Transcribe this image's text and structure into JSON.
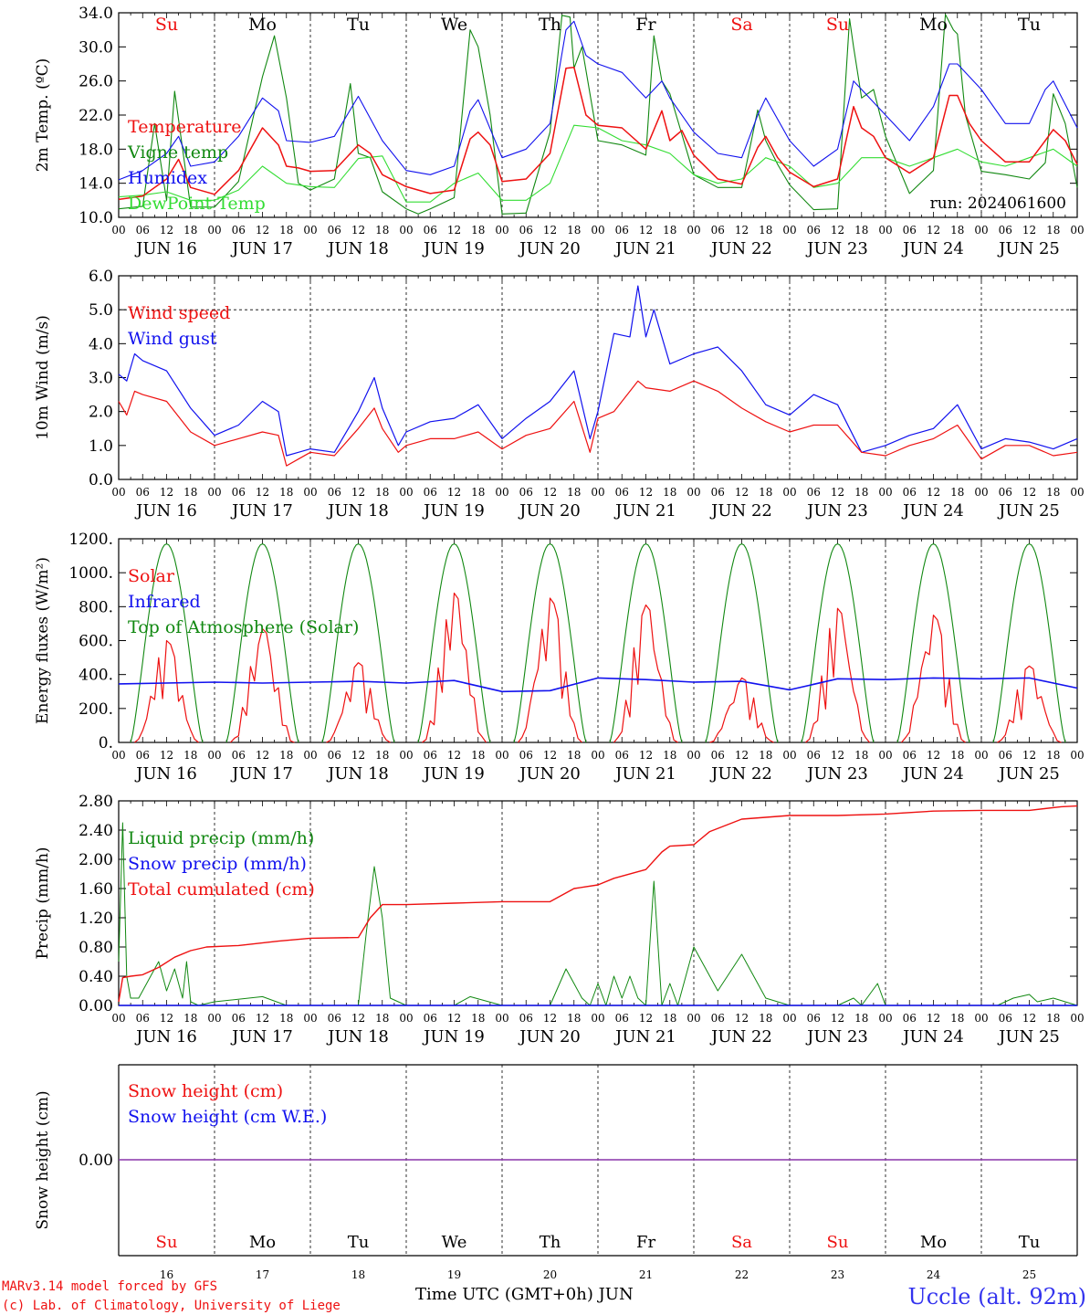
{
  "footer": {
    "model_line": "MARv3.14 model forced by GFS",
    "lab_line": "(c) Lab. of Climatology, University of Liege",
    "xlabel": "Time UTC (GMT+0h) JUN",
    "station": "Uccle (alt. 92m)"
  },
  "colors": {
    "red": "#ee1111",
    "green": "#118811",
    "blue": "#1111ee",
    "lightgreen": "#33dd33",
    "weekend": "#ee1111",
    "weekday": "#000000",
    "snow_line": "#8833aa"
  },
  "days": {
    "abbr": [
      "Su",
      "Mo",
      "Tu",
      "We",
      "Th",
      "Fr",
      "Sa",
      "Su",
      "Mo",
      "Tu"
    ],
    "weekend": [
      true,
      false,
      false,
      false,
      false,
      false,
      true,
      true,
      false,
      false
    ],
    "dates": [
      "JUN 16",
      "JUN 17",
      "JUN 18",
      "JUN 19",
      "JUN 20",
      "JUN 21",
      "JUN 22",
      "JUN 23",
      "JUN 24",
      "JUN 25"
    ],
    "numbers": [
      "16",
      "17",
      "18",
      "19",
      "20",
      "21",
      "22",
      "23",
      "24",
      "25"
    ],
    "hour_ticks": [
      "00",
      "06",
      "12",
      "18"
    ],
    "hour_end": "00"
  },
  "chart_data": [
    {
      "type": "line",
      "ylabel": "2m Temp. (ºC)",
      "yticks": [
        "10.0",
        "14.0",
        "18.0",
        "22.0",
        "26.0",
        "30.0",
        "34.0"
      ],
      "ylim": [
        10,
        34
      ],
      "run_label": "run: 2024061600",
      "x_unit": "hours since 2024-06-16 00 UTC",
      "series": [
        {
          "name": "Temperature",
          "color": "red",
          "x": [
            0,
            6,
            12,
            15,
            18,
            24,
            30,
            36,
            40,
            42,
            45,
            48,
            54,
            60,
            63,
            66,
            72,
            78,
            84,
            88,
            90,
            93,
            96,
            102,
            108,
            112,
            114,
            117,
            120,
            126,
            132,
            136,
            138,
            141,
            144,
            150,
            156,
            160,
            162,
            165,
            168,
            174,
            180,
            184,
            186,
            189,
            192,
            198,
            204,
            208,
            210,
            213,
            216,
            222,
            228,
            232,
            234,
            237,
            240
          ],
          "values": [
            12.1,
            12.5,
            14.5,
            16.8,
            13.5,
            12.7,
            15.5,
            20.5,
            18.5,
            16.0,
            15.8,
            15.4,
            15.5,
            18.5,
            17.5,
            15.0,
            13.6,
            12.8,
            13.2,
            19.2,
            20.0,
            18.5,
            14.2,
            14.5,
            17.5,
            27.5,
            27.6,
            22.0,
            20.8,
            20.5,
            18.0,
            22.5,
            19.0,
            20.2,
            17.3,
            14.5,
            13.9,
            18.2,
            19.5,
            17.0,
            15.3,
            13.6,
            14.5,
            23.0,
            20.5,
            19.5,
            17.0,
            15.2,
            17.0,
            24.3,
            24.3,
            21.0,
            19.0,
            16.5,
            16.5,
            19.0,
            20.3,
            19.0,
            16.2
          ]
        },
        {
          "name": "Vigne temp",
          "color": "green",
          "x": [
            0,
            6,
            9,
            12,
            14,
            18,
            24,
            30,
            36,
            39,
            42,
            45,
            48,
            54,
            58,
            60,
            63,
            66,
            72,
            75,
            78,
            84,
            88,
            90,
            93,
            96,
            102,
            108,
            111,
            113,
            114,
            116,
            120,
            126,
            132,
            134,
            136,
            138,
            144,
            150,
            156,
            160,
            162,
            165,
            168,
            174,
            180,
            183,
            184,
            186,
            189,
            192,
            198,
            204,
            207,
            209,
            210,
            212,
            216,
            222,
            228,
            232,
            234,
            237,
            240
          ],
          "values": [
            11.0,
            11.3,
            21.0,
            12.0,
            24.8,
            11.2,
            11.2,
            14.2,
            26.5,
            31.3,
            24.0,
            14.0,
            13.2,
            14.5,
            25.7,
            17.5,
            17.0,
            13.0,
            11.0,
            10.4,
            11.0,
            12.3,
            32.0,
            30.0,
            22.0,
            10.4,
            10.5,
            20.0,
            33.7,
            33.5,
            27.5,
            30.0,
            19.0,
            18.5,
            17.3,
            31.3,
            26.0,
            24.5,
            15.0,
            13.5,
            13.5,
            22.6,
            19.0,
            16.2,
            13.8,
            10.9,
            11.0,
            33.3,
            30.0,
            24.0,
            25.0,
            19.5,
            12.8,
            15.5,
            33.8,
            32.0,
            31.5,
            22.0,
            15.4,
            15.0,
            14.5,
            16.4,
            24.5,
            21.0,
            13.5
          ]
        },
        {
          "name": "Humidex",
          "color": "blue",
          "x": [
            0,
            6,
            12,
            15,
            18,
            24,
            30,
            36,
            40,
            42,
            48,
            54,
            60,
            66,
            72,
            78,
            84,
            88,
            90,
            96,
            102,
            108,
            112,
            114,
            117,
            120,
            126,
            132,
            136,
            138,
            144,
            150,
            156,
            160,
            162,
            168,
            174,
            180,
            184,
            186,
            192,
            198,
            204,
            208,
            210,
            216,
            222,
            228,
            232,
            234,
            240
          ],
          "values": [
            14.4,
            15.5,
            17.5,
            19.5,
            16.0,
            16.5,
            19.5,
            24.0,
            22.5,
            19.0,
            18.8,
            19.5,
            24.2,
            19.0,
            15.5,
            15.0,
            16.0,
            22.5,
            23.8,
            17.0,
            18.0,
            21.0,
            32.0,
            33.0,
            29.0,
            28.0,
            27.0,
            24.0,
            26.0,
            24.0,
            20.0,
            17.5,
            17.0,
            22.0,
            24.0,
            19.0,
            16.0,
            18.0,
            26.0,
            25.0,
            22.0,
            19.0,
            23.0,
            28.0,
            28.0,
            25.0,
            21.0,
            21.0,
            25.0,
            26.0,
            20.5
          ]
        },
        {
          "name": "DewPoint Temp",
          "color": "lightgreen",
          "x": [
            0,
            6,
            12,
            18,
            24,
            30,
            36,
            42,
            48,
            54,
            60,
            66,
            72,
            78,
            84,
            90,
            96,
            102,
            108,
            114,
            120,
            126,
            132,
            138,
            144,
            150,
            156,
            162,
            168,
            174,
            180,
            186,
            192,
            198,
            204,
            210,
            216,
            222,
            228,
            234,
            240
          ],
          "values": [
            12.4,
            12.6,
            13.0,
            12.0,
            12.0,
            13.2,
            16.0,
            14.0,
            13.6,
            13.5,
            16.9,
            17.2,
            11.8,
            11.8,
            14.0,
            15.2,
            12.0,
            12.0,
            14.0,
            20.8,
            20.5,
            19.0,
            18.5,
            17.5,
            15.0,
            14.0,
            14.5,
            17.0,
            16.0,
            13.5,
            14.0,
            17.0,
            17.0,
            16.0,
            17.0,
            18.0,
            16.5,
            16.0,
            17.0,
            18.0,
            16.0
          ]
        }
      ]
    },
    {
      "type": "line",
      "ylabel": "10m Wind (m/s)",
      "yticks": [
        "0.0",
        "1.0",
        "2.0",
        "3.0",
        "4.0",
        "5.0",
        "6.0"
      ],
      "ylim": [
        0,
        6
      ],
      "ref_line": 5.0,
      "x_unit": "hours since 2024-06-16 00 UTC",
      "series": [
        {
          "name": "Wind speed",
          "color": "red",
          "x": [
            0,
            2,
            4,
            6,
            12,
            18,
            24,
            30,
            36,
            40,
            42,
            45,
            48,
            54,
            60,
            64,
            66,
            70,
            72,
            78,
            84,
            90,
            96,
            102,
            108,
            114,
            118,
            120,
            124,
            130,
            132,
            138,
            144,
            150,
            156,
            162,
            168,
            174,
            180,
            186,
            192,
            198,
            204,
            210,
            216,
            222,
            228,
            234,
            240
          ],
          "values": [
            2.3,
            1.9,
            2.6,
            2.5,
            2.3,
            1.4,
            1.0,
            1.2,
            1.4,
            1.3,
            0.4,
            0.6,
            0.8,
            0.7,
            1.5,
            2.1,
            1.5,
            0.8,
            1.0,
            1.2,
            1.2,
            1.4,
            0.9,
            1.3,
            1.5,
            2.3,
            0.8,
            1.8,
            2.0,
            2.9,
            2.7,
            2.6,
            2.9,
            2.6,
            2.1,
            1.7,
            1.4,
            1.6,
            1.6,
            0.8,
            0.7,
            1.0,
            1.2,
            1.6,
            0.6,
            1.0,
            1.0,
            0.7,
            0.8
          ]
        },
        {
          "name": "Wind gust",
          "color": "blue",
          "x": [
            0,
            2,
            4,
            6,
            12,
            18,
            24,
            30,
            36,
            40,
            42,
            45,
            48,
            54,
            60,
            64,
            66,
            70,
            72,
            78,
            84,
            90,
            96,
            102,
            108,
            114,
            118,
            120,
            124,
            128,
            130,
            132,
            134,
            138,
            144,
            150,
            156,
            162,
            168,
            174,
            180,
            186,
            192,
            198,
            204,
            210,
            216,
            222,
            228,
            234,
            240
          ],
          "values": [
            3.1,
            2.9,
            3.7,
            3.5,
            3.2,
            2.1,
            1.3,
            1.6,
            2.3,
            2.0,
            0.7,
            0.8,
            0.9,
            0.8,
            2.0,
            3.0,
            2.1,
            1.0,
            1.4,
            1.7,
            1.8,
            2.2,
            1.2,
            1.8,
            2.3,
            3.2,
            1.2,
            2.0,
            4.3,
            4.2,
            5.7,
            4.2,
            5.0,
            3.4,
            3.7,
            3.9,
            3.2,
            2.2,
            1.9,
            2.5,
            2.2,
            0.8,
            1.0,
            1.3,
            1.5,
            2.2,
            0.9,
            1.2,
            1.1,
            0.9,
            1.2
          ]
        }
      ]
    },
    {
      "type": "line",
      "ylabel": "Energy fluxes (W/m²)",
      "yticks": [
        "0.",
        "200.",
        "400.",
        "600.",
        "800.",
        "1000.",
        "1200."
      ],
      "ylim": [
        0,
        1200
      ],
      "x_unit": "hours since 2024-06-16 00 UTC",
      "series": [
        {
          "name": "Solar",
          "color": "red",
          "peaks": [
            600,
            670,
            470,
            880,
            850,
            810,
            380,
            790,
            750,
            450
          ],
          "description_hint": "daily solar curve"
        },
        {
          "name": "Infrared",
          "color": "blue",
          "x": [
            0,
            24,
            36,
            48,
            60,
            72,
            84,
            96,
            108,
            120,
            132,
            144,
            156,
            168,
            180,
            192,
            204,
            216,
            228,
            240
          ],
          "values": [
            345,
            355,
            350,
            355,
            360,
            350,
            365,
            300,
            305,
            380,
            370,
            355,
            360,
            310,
            375,
            370,
            380,
            375,
            380,
            320
          ]
        },
        {
          "name": "Top of Atmosphere (Solar)",
          "color": "green",
          "peak": 1170
        }
      ]
    },
    {
      "type": "line",
      "ylabel": "Precip (mm/h)",
      "yticks": [
        "0.00",
        "0.40",
        "0.80",
        "1.20",
        "1.60",
        "2.00",
        "2.40",
        "2.80"
      ],
      "ylim": [
        0,
        2.8
      ],
      "x_unit": "hours since 2024-06-16 00 UTC",
      "series": [
        {
          "name": "Liquid precip (mm/h)",
          "color": "green",
          "x": [
            0,
            1,
            2,
            3,
            5,
            8,
            10,
            12,
            14,
            16,
            17,
            18,
            20,
            24,
            36,
            42,
            48,
            60,
            62,
            64,
            66,
            68,
            72,
            84,
            88,
            96,
            108,
            112,
            114,
            116,
            118,
            120,
            122,
            124,
            126,
            128,
            130,
            132,
            134,
            136,
            138,
            140,
            144,
            150,
            156,
            162,
            168,
            180,
            184,
            186,
            190,
            192,
            200,
            210,
            220,
            224,
            228,
            230,
            234,
            240
          ],
          "values": [
            0.6,
            2.5,
            0.4,
            0.1,
            0.1,
            0.4,
            0.6,
            0.2,
            0.5,
            0.1,
            0.6,
            0.05,
            0.0,
            0.05,
            0.12,
            0.0,
            0.0,
            0.0,
            1.0,
            1.9,
            1.2,
            0.1,
            0.0,
            0.0,
            0.12,
            0.0,
            0.0,
            0.5,
            0.3,
            0.1,
            0.0,
            0.3,
            0.0,
            0.4,
            0.1,
            0.4,
            0.1,
            0.0,
            1.7,
            0.0,
            0.3,
            0.0,
            0.8,
            0.2,
            0.7,
            0.1,
            0.0,
            0.0,
            0.1,
            0.0,
            0.3,
            0.0,
            0.0,
            0.0,
            0.0,
            0.1,
            0.15,
            0.05,
            0.1,
            0.0
          ]
        },
        {
          "name": "Snow precip (mm/h)",
          "color": "blue",
          "x": [
            0,
            240
          ],
          "values": [
            0,
            0
          ]
        },
        {
          "name": "Total cumulated (cm)",
          "color": "red",
          "x": [
            0,
            1,
            3,
            6,
            10,
            14,
            18,
            22,
            30,
            40,
            48,
            60,
            63,
            66,
            72,
            84,
            96,
            108,
            114,
            120,
            124,
            132,
            136,
            138,
            144,
            148,
            156,
            168,
            180,
            192,
            204,
            216,
            228,
            236,
            240
          ],
          "values": [
            0.05,
            0.38,
            0.4,
            0.42,
            0.52,
            0.66,
            0.75,
            0.8,
            0.82,
            0.88,
            0.92,
            0.93,
            1.2,
            1.38,
            1.38,
            1.4,
            1.42,
            1.42,
            1.6,
            1.65,
            1.74,
            1.86,
            2.1,
            2.18,
            2.2,
            2.38,
            2.55,
            2.6,
            2.6,
            2.62,
            2.66,
            2.67,
            2.67,
            2.72,
            2.73
          ]
        }
      ]
    },
    {
      "type": "line",
      "ylabel": "Snow height (cm)",
      "yticks": [
        "0.00"
      ],
      "x_unit": "hours since 2024-06-16 00 UTC",
      "series": [
        {
          "name": "Snow height (cm)",
          "color": "red",
          "x": [
            0,
            240
          ],
          "values": [
            0,
            0
          ]
        },
        {
          "name": "Snow height (cm W.E.)",
          "color": "blue",
          "x": [
            0,
            240
          ],
          "values": [
            0,
            0
          ]
        }
      ]
    }
  ]
}
